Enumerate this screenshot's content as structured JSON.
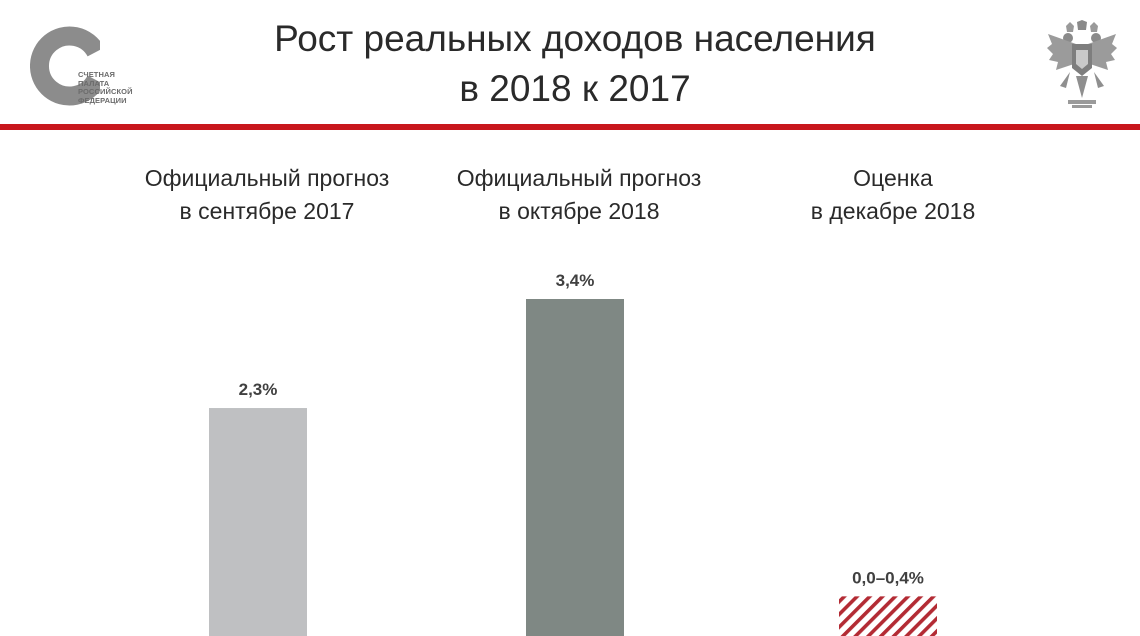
{
  "logo": {
    "lines": [
      "СЧЕТНАЯ",
      "ПАЛАТА",
      "РОССИЙСКОЙ",
      "ФЕДЕРАЦИИ"
    ]
  },
  "title": {
    "line1": "Рост реальных доходов населения",
    "line2": "в 2018 к 2017"
  },
  "colors": {
    "accent_rule": "#c8161d",
    "bar_light_gray": "#bfc0c2",
    "bar_dark_gray": "#7f8884",
    "hatch_red": "#b32b34"
  },
  "icons": {
    "left_logo": "accounts-chamber-logo",
    "right_logo": "double-headed-eagle-emblem"
  },
  "chart_data": {
    "type": "bar",
    "categories": [
      [
        "Официальный прогноз",
        "в сентябре 2017"
      ],
      [
        "Официальный прогноз",
        "в октябре 2018"
      ],
      [
        "Оценка",
        "в декабре 2018"
      ]
    ],
    "values": [
      2.3,
      3.4,
      0.4
    ],
    "range_low": [
      null,
      null,
      0.0
    ],
    "data_labels": [
      "2,3%",
      "3,4%",
      "0,0–0,4%"
    ],
    "styles": [
      "solid-light-gray",
      "solid-dark-gray",
      "hatched-red"
    ],
    "units": "%",
    "ylim": [
      0,
      3.4
    ],
    "grid": false,
    "legend": "none"
  }
}
